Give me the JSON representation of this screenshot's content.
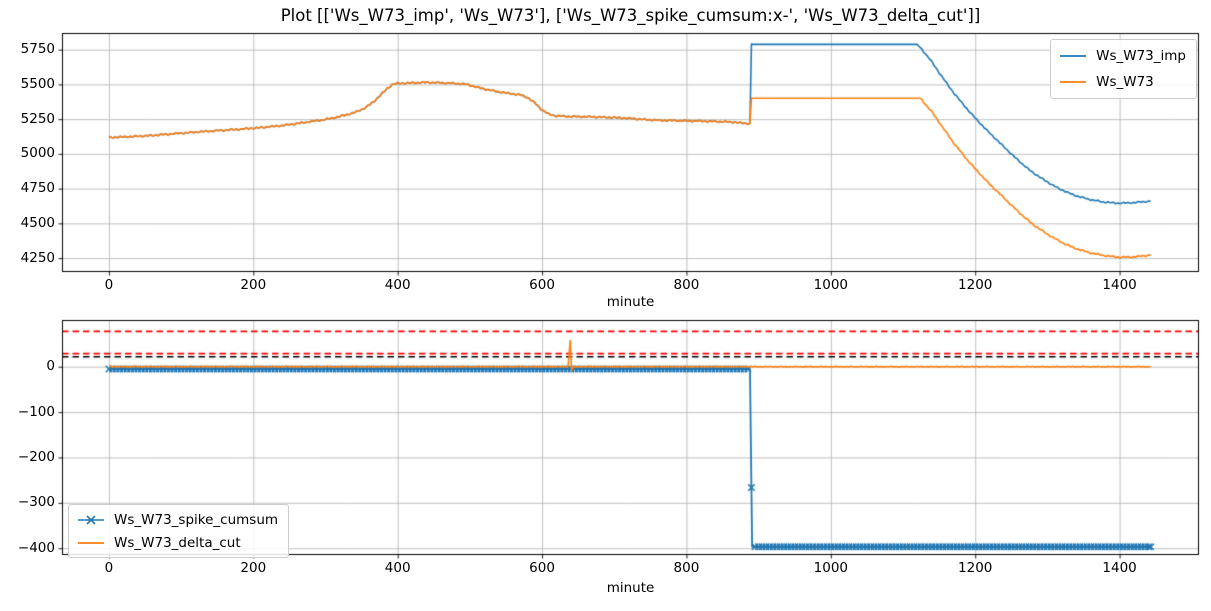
{
  "title": "Plot [['Ws_W73_imp', 'Ws_W73'], ['Ws_W73_spike_cumsum:x-', 'Ws_W73_delta_cut']]",
  "colors": {
    "series_blue": "#1f77b4",
    "series_orange": "#ff7f0e",
    "threshold_red": "#ff0000",
    "threshold_black": "#000000",
    "grid": "#b0b0b0",
    "spine": "#000000",
    "legend_border": "#cccccc"
  },
  "chart_data": [
    {
      "type": "line",
      "xlabel": "minute",
      "ylabel": "",
      "xlim": [
        -65,
        1510
      ],
      "ylim": [
        4150,
        5870
      ],
      "xticks": [
        0,
        200,
        400,
        600,
        800,
        1000,
        1200,
        1400
      ],
      "yticks": [
        4250,
        4500,
        4750,
        5000,
        5250,
        5500,
        5750
      ],
      "grid": true,
      "legend_position": "upper right",
      "series": [
        {
          "name": "Ws_W73_imp",
          "color": "#1f77b4",
          "linestyle": "-",
          "points": [
            [
              0,
              5118
            ],
            [
              30,
              5124
            ],
            [
              60,
              5133
            ],
            [
              90,
              5145
            ],
            [
              120,
              5157
            ],
            [
              150,
              5167
            ],
            [
              180,
              5177
            ],
            [
              210,
              5189
            ],
            [
              240,
              5204
            ],
            [
              270,
              5225
            ],
            [
              300,
              5248
            ],
            [
              320,
              5269
            ],
            [
              340,
              5297
            ],
            [
              355,
              5332
            ],
            [
              366,
              5372
            ],
            [
              376,
              5422
            ],
            [
              385,
              5468
            ],
            [
              392,
              5498
            ],
            [
              400,
              5507
            ],
            [
              425,
              5512
            ],
            [
              440,
              5515
            ],
            [
              460,
              5511
            ],
            [
              480,
              5507
            ],
            [
              495,
              5501
            ],
            [
              515,
              5473
            ],
            [
              535,
              5451
            ],
            [
              555,
              5435
            ],
            [
              570,
              5424
            ],
            [
              580,
              5406
            ],
            [
              590,
              5366
            ],
            [
              600,
              5316
            ],
            [
              610,
              5284
            ],
            [
              620,
              5273
            ],
            [
              650,
              5268
            ],
            [
              680,
              5265
            ],
            [
              700,
              5261
            ],
            [
              720,
              5256
            ],
            [
              740,
              5248
            ],
            [
              760,
              5242
            ],
            [
              790,
              5239
            ],
            [
              820,
              5236
            ],
            [
              850,
              5232
            ],
            [
              868,
              5228
            ],
            [
              876,
              5222
            ],
            [
              888,
              5217
            ],
            [
              890,
              5788
            ],
            [
              1120,
              5788
            ],
            [
              1136,
              5690
            ],
            [
              1151,
              5578
            ],
            [
              1166,
              5468
            ],
            [
              1181,
              5370
            ],
            [
              1196,
              5280
            ],
            [
              1216,
              5170
            ],
            [
              1236,
              5070
            ],
            [
              1256,
              4970
            ],
            [
              1276,
              4880
            ],
            [
              1296,
              4810
            ],
            [
              1316,
              4750
            ],
            [
              1336,
              4705
            ],
            [
              1356,
              4675
            ],
            [
              1376,
              4655
            ],
            [
              1396,
              4645
            ],
            [
              1416,
              4648
            ],
            [
              1443,
              4660
            ]
          ]
        },
        {
          "name": "Ws_W73",
          "color": "#ff7f0e",
          "linestyle": "-",
          "points": [
            [
              0,
              5118
            ],
            [
              30,
              5124
            ],
            [
              60,
              5133
            ],
            [
              90,
              5145
            ],
            [
              120,
              5157
            ],
            [
              150,
              5167
            ],
            [
              180,
              5177
            ],
            [
              210,
              5189
            ],
            [
              240,
              5204
            ],
            [
              270,
              5225
            ],
            [
              300,
              5248
            ],
            [
              320,
              5269
            ],
            [
              340,
              5297
            ],
            [
              355,
              5332
            ],
            [
              366,
              5372
            ],
            [
              376,
              5422
            ],
            [
              385,
              5468
            ],
            [
              392,
              5498
            ],
            [
              400,
              5507
            ],
            [
              425,
              5512
            ],
            [
              440,
              5515
            ],
            [
              460,
              5511
            ],
            [
              480,
              5507
            ],
            [
              495,
              5501
            ],
            [
              515,
              5473
            ],
            [
              535,
              5451
            ],
            [
              555,
              5435
            ],
            [
              570,
              5424
            ],
            [
              580,
              5406
            ],
            [
              590,
              5366
            ],
            [
              600,
              5316
            ],
            [
              610,
              5284
            ],
            [
              620,
              5273
            ],
            [
              650,
              5268
            ],
            [
              680,
              5265
            ],
            [
              700,
              5261
            ],
            [
              720,
              5256
            ],
            [
              740,
              5248
            ],
            [
              760,
              5242
            ],
            [
              790,
              5239
            ],
            [
              820,
              5236
            ],
            [
              850,
              5232
            ],
            [
              868,
              5228
            ],
            [
              876,
              5222
            ],
            [
              888,
              5217
            ],
            [
              890,
              5400
            ],
            [
              1124,
              5400
            ],
            [
              1140,
              5302
            ],
            [
              1155,
              5190
            ],
            [
              1170,
              5080
            ],
            [
              1185,
              4982
            ],
            [
              1200,
              4892
            ],
            [
              1220,
              4782
            ],
            [
              1240,
              4682
            ],
            [
              1260,
              4582
            ],
            [
              1280,
              4492
            ],
            [
              1300,
              4422
            ],
            [
              1320,
              4362
            ],
            [
              1340,
              4317
            ],
            [
              1360,
              4287
            ],
            [
              1380,
              4267
            ],
            [
              1400,
              4256
            ],
            [
              1420,
              4259
            ],
            [
              1443,
              4272
            ]
          ]
        }
      ]
    },
    {
      "type": "line",
      "xlabel": "minute",
      "ylabel": "",
      "xlim": [
        -65,
        1510
      ],
      "ylim": [
        -415,
        103
      ],
      "xticks": [
        0,
        200,
        400,
        600,
        800,
        1000,
        1200,
        1400
      ],
      "yticks": [
        0,
        -100,
        -200,
        -300,
        -400
      ],
      "grid": true,
      "legend_position": "lower left",
      "hlines": [
        {
          "y": 78,
          "color": "#ff0000",
          "style": "dashed"
        },
        {
          "y": 29,
          "color": "#ff0000",
          "style": "dashed"
        },
        {
          "y": 22,
          "color": "#000000",
          "style": "dashed"
        }
      ],
      "series": [
        {
          "name": "Ws_W73_spike_cumsum",
          "color": "#1f77b4",
          "linestyle": "x-",
          "marker": "x",
          "points": [
            [
              0,
              -5
            ],
            [
              888,
              -5
            ],
            [
              891,
              -397
            ],
            [
              1443,
              -397
            ]
          ]
        },
        {
          "name": "Ws_W73_delta_cut",
          "color": "#ff7f0e",
          "linestyle": "-",
          "points": [
            [
              0,
              0
            ],
            [
              636,
              0
            ],
            [
              639,
              58
            ],
            [
              641,
              -8
            ],
            [
              644,
              0
            ],
            [
              1443,
              0
            ]
          ]
        }
      ]
    }
  ]
}
